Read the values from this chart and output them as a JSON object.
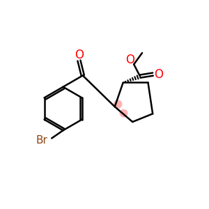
{
  "background": "#ffffff",
  "line_color": "#000000",
  "red_color": "#ff0000",
  "brown_color": "#8B4513",
  "pink_color": "#ffb3b3",
  "bond_lw": 1.8,
  "figsize": [
    3.0,
    3.0
  ],
  "dpi": 100,
  "xlim": [
    0,
    10
  ],
  "ylim": [
    0,
    10
  ]
}
